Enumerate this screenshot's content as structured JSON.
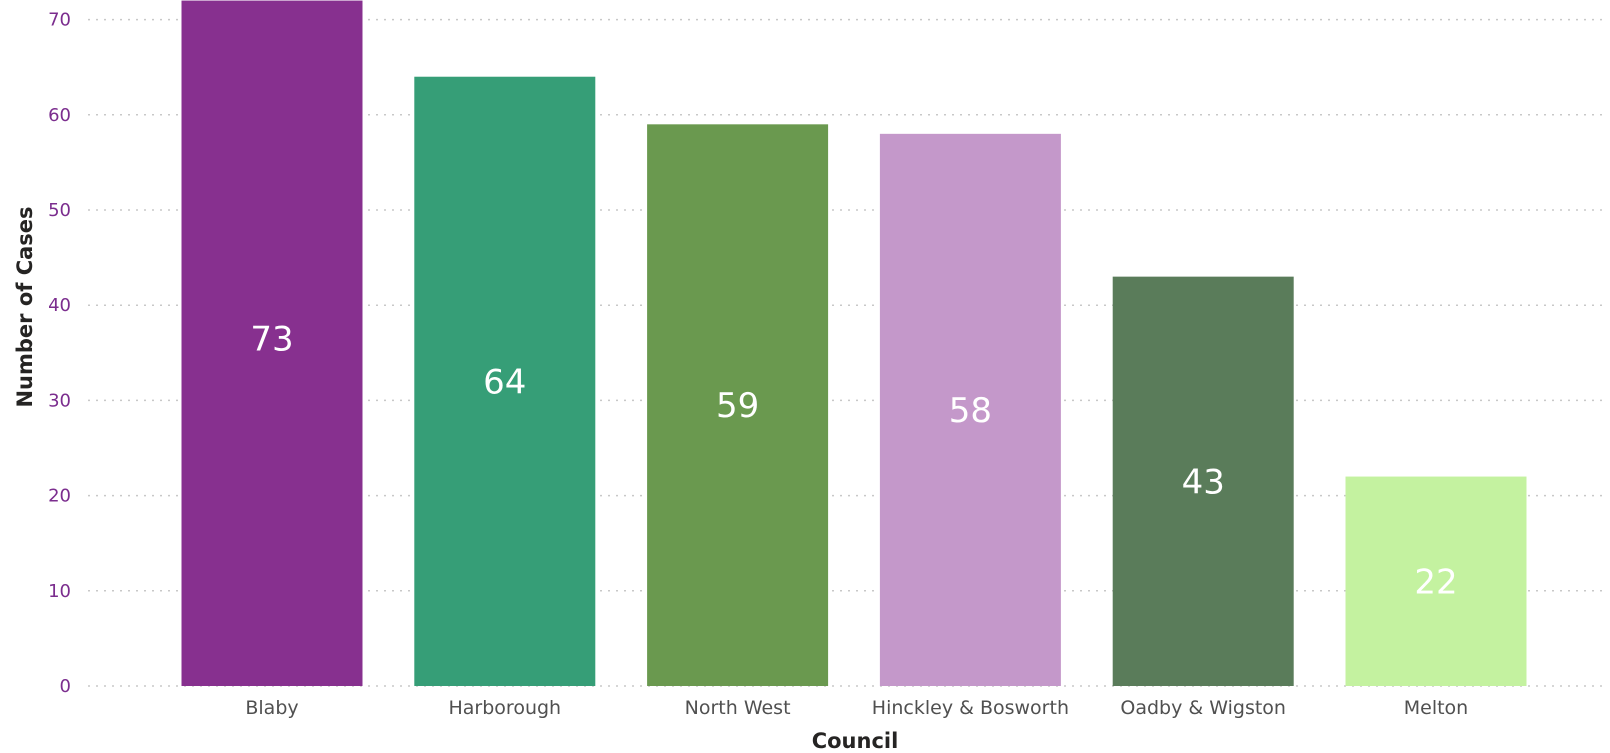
{
  "chart_data": {
    "type": "bar",
    "categories": [
      "Blaby",
      "Harborough",
      "North West",
      "Hinckley & Bosworth",
      "Oadby & Wigston",
      "Melton"
    ],
    "values": [
      73,
      64,
      59,
      58,
      43,
      22
    ],
    "colors": [
      "#87308f",
      "#369e77",
      "#6a994f",
      "#c498ca",
      "#5a7c5a",
      "#c4f2a0"
    ],
    "data_label_color": "#ffffff",
    "xlabel": "Council",
    "ylabel": "Number of Cases",
    "ylim": [
      0,
      72
    ],
    "yticks": [
      0,
      10,
      20,
      30,
      40,
      50,
      60,
      70
    ],
    "grid": true,
    "legend": "none"
  }
}
